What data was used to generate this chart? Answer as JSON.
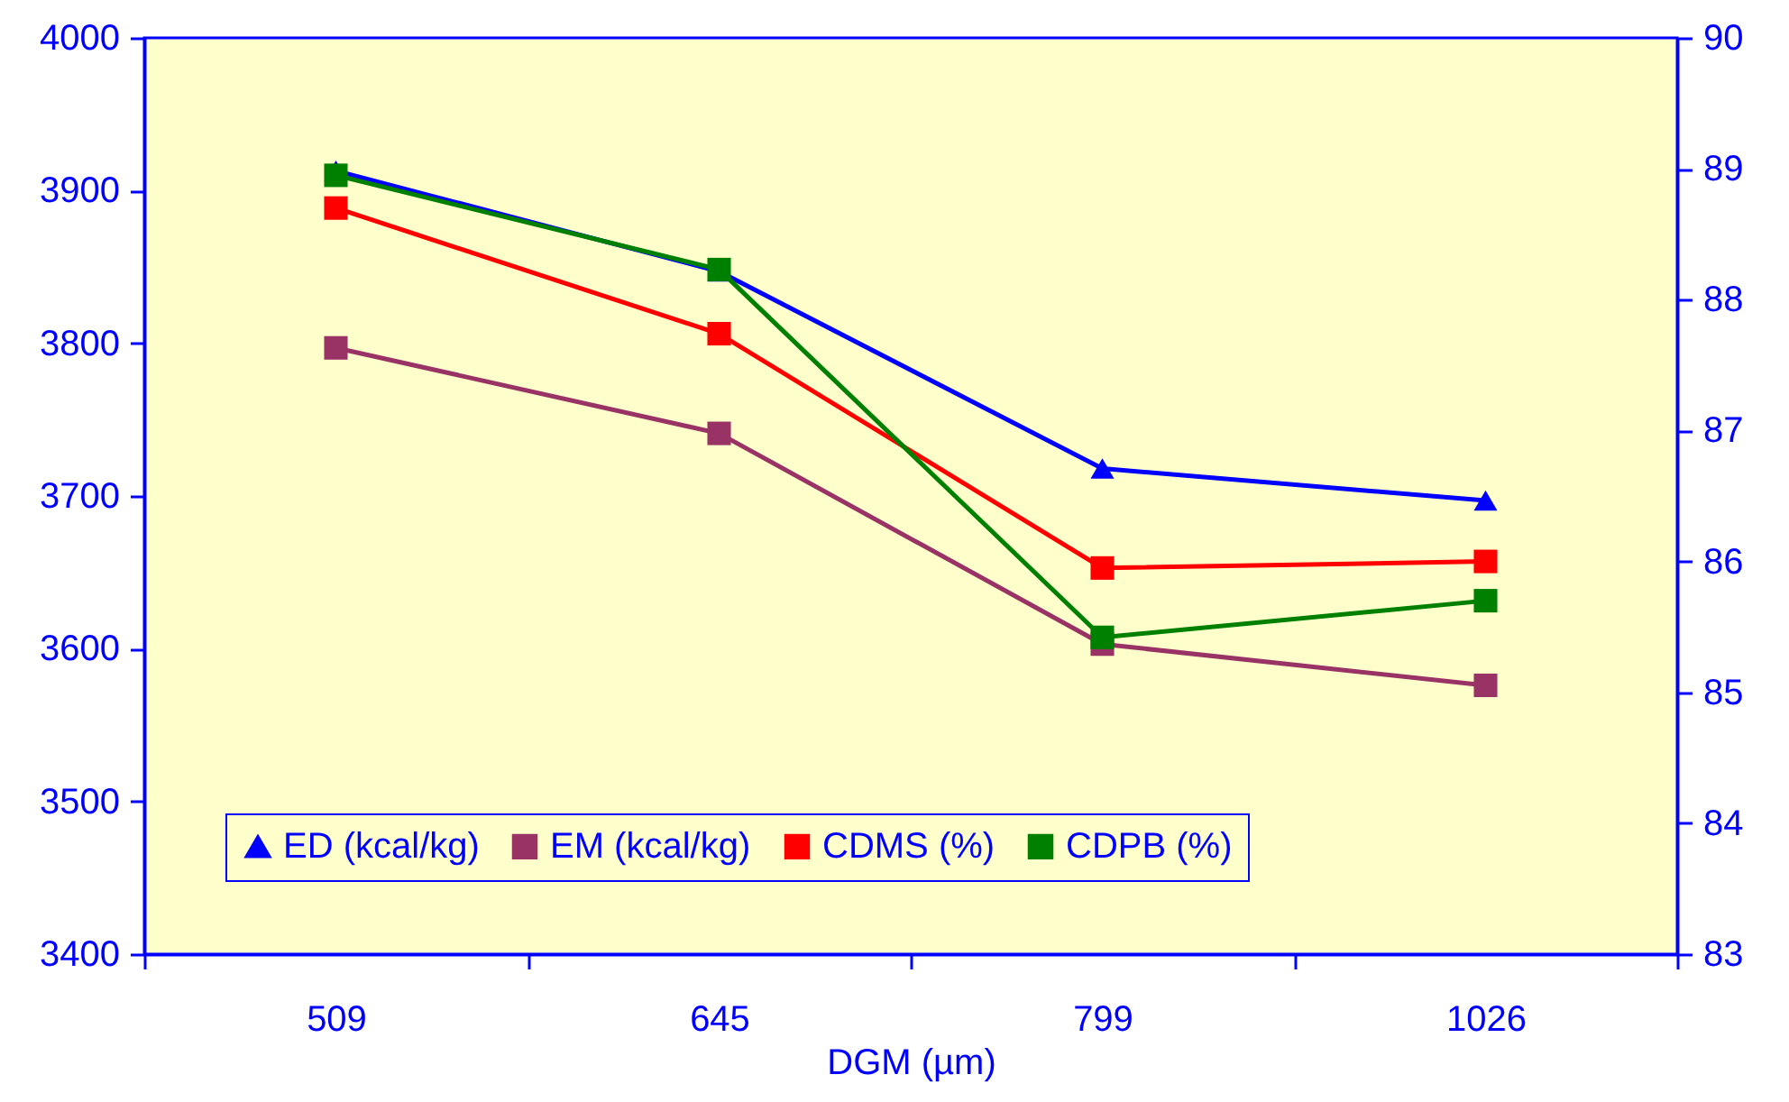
{
  "chart_data": {
    "type": "line",
    "xlabel": "DGM (µm)",
    "categories": [
      "509",
      "645",
      "799",
      "1026"
    ],
    "series": [
      {
        "name": "ED (kcal/kg)",
        "color": "#0000ff",
        "marker": "triangle",
        "values": [
          3913,
          3847,
          3718,
          3697
        ]
      },
      {
        "name": "EM (kcal/kg)",
        "color": "#993366",
        "marker": "square",
        "values": [
          3797,
          3741,
          3603,
          3576
        ]
      },
      {
        "name": "CDMS (%)",
        "color": "#ff0000",
        "marker": "square",
        "axis": "y2",
        "values": [
          88.7,
          87.74,
          85.95,
          86.0
        ]
      },
      {
        "name": "CDPB (%)",
        "color": "#008000",
        "marker": "square",
        "axis": "y2",
        "values": [
          88.95,
          88.23,
          85.42,
          85.7
        ]
      }
    ],
    "ylim": [
      3400,
      4000
    ],
    "yticks": [
      3400,
      3500,
      3600,
      3700,
      3800,
      3900,
      4000
    ],
    "y2lim": [
      83,
      90
    ],
    "y2ticks": [
      83,
      84,
      85,
      86,
      87,
      88,
      89,
      90
    ],
    "legend": "bottom",
    "grid": false,
    "line_style": "solid"
  }
}
